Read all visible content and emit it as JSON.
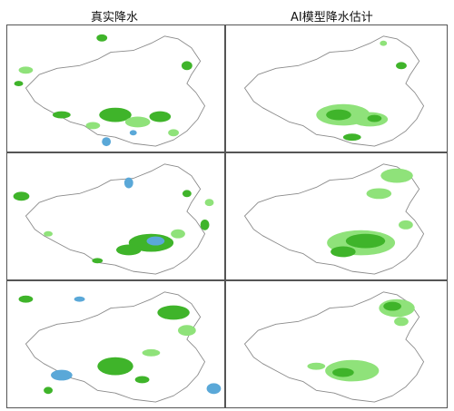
{
  "headers": {
    "left": "真实降水",
    "right": "AI模型降水估计"
  },
  "colors": {
    "rain_light": "#8fe27a",
    "rain_moderate": "#3fb42a",
    "rain_heavy": "#5aa8d8",
    "border": "#8a8a8a",
    "frame": "#555555"
  },
  "legend_note": ""
}
